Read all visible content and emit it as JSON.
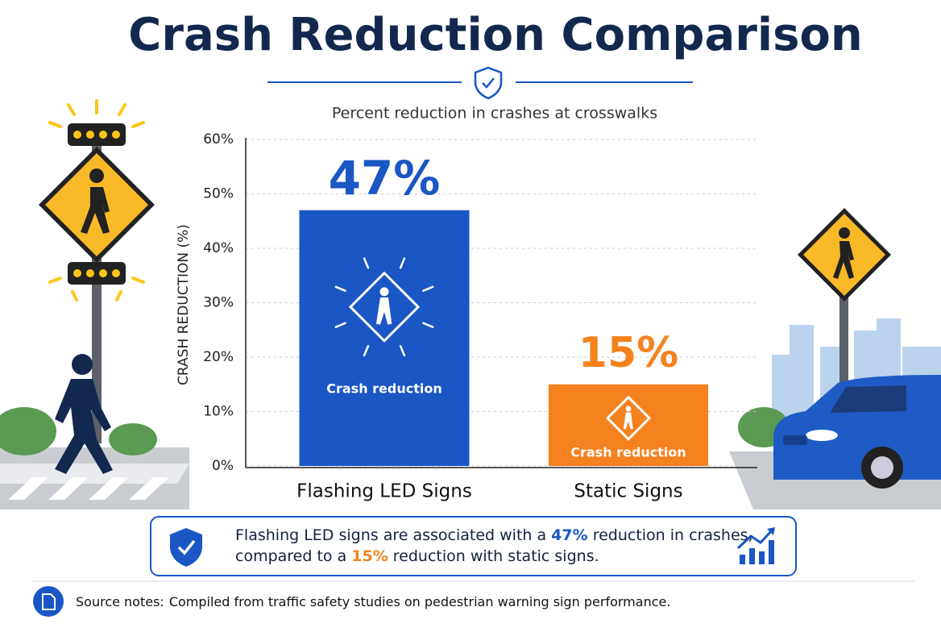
{
  "chart_data": {
    "type": "bar",
    "title": "Crash Reduction Comparison",
    "subtitle": "Percent reduction in crashes at crosswalks",
    "y_label": "CRASH REDUCTION (%)",
    "categories": [
      "Flashing LED Signs",
      "Static Signs"
    ],
    "values": [
      47,
      15
    ],
    "value_labels": [
      "47%",
      "15%"
    ],
    "colors": [
      "#1a56c4",
      "#f5821f"
    ],
    "bar_label": "Crash reduction",
    "ylim": [
      0,
      60
    ],
    "yticks": [
      {
        "value": 0,
        "label": "0%"
      },
      {
        "value": 10,
        "label": "10%"
      },
      {
        "value": 20,
        "label": "20%"
      },
      {
        "value": 30,
        "label": "30%"
      },
      {
        "value": 40,
        "label": "40%"
      },
      {
        "value": 50,
        "label": "50%"
      },
      {
        "value": 60,
        "label": "60%"
      }
    ],
    "grid": true
  },
  "callout": {
    "line1": [
      "Flashing LED signs are associated with a ",
      "47%",
      " reduction in crashes,"
    ],
    "line2": [
      "compared to a ",
      "15%",
      " reduction with static signs."
    ]
  },
  "source": {
    "label": "Source notes:",
    "text": "Compiled from traffic safety studies on pedestrian warning sign performance."
  }
}
